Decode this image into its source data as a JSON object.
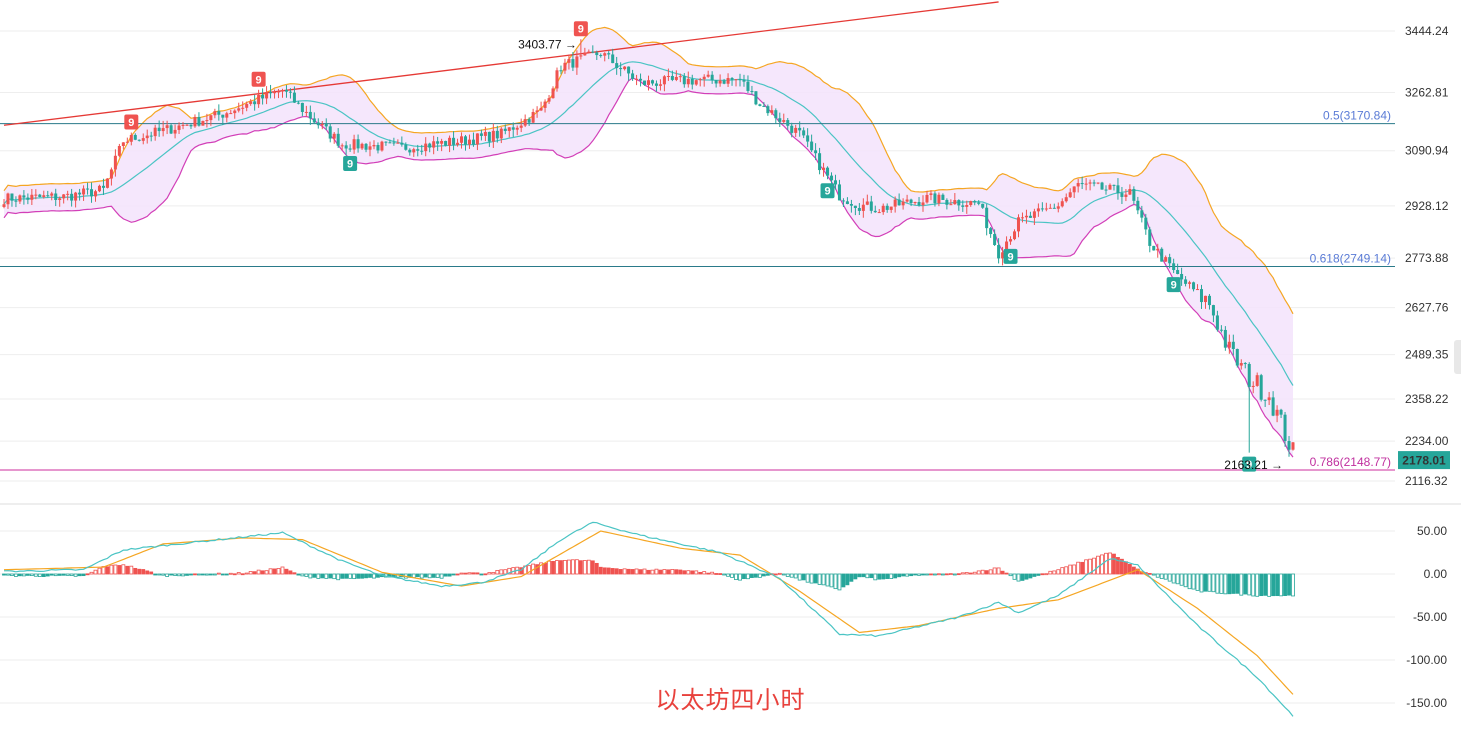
{
  "chart_data": [
    {
      "type": "candlestick",
      "title": "以太坊四小时",
      "ylim": [
        2060,
        3520
      ],
      "y_ticks": [
        "3444.24",
        "3262.81",
        "3090.94",
        "2928.12",
        "2773.88",
        "2627.76",
        "2489.35",
        "2358.22",
        "2234.00",
        "2116.32"
      ],
      "current_price": "2178.01",
      "colors": {
        "up": "#ef5350",
        "down": "#26a69a",
        "band_fill": "#f3e3fb",
        "upper_band": "#f5a623",
        "lower_band": "#d23fb8",
        "middle_band": "#4ac4c4",
        "trendline": "#e53935",
        "fib_blue": "#5a7bd6",
        "fib_magenta": "#c0309f",
        "fib_line_blue": "#2a7a8a",
        "fib_line_magenta": "#cc2e9e"
      },
      "fib_levels": [
        {
          "label": "0.5(3170.84)",
          "value": 3170.84
        },
        {
          "label": "0.618(2749.14)",
          "value": 2749.14
        },
        {
          "label": "0.786(2148.77)",
          "value": 2148.77
        }
      ],
      "annotations": [
        {
          "text": "3403.77 →",
          "value": 3403.77
        },
        {
          "text": "2163.21 →",
          "value": 2163.21
        }
      ],
      "td9_marks": [
        {
          "label": "9",
          "side": "high",
          "bar": 32
        },
        {
          "label": "9",
          "side": "high",
          "bar": 64
        },
        {
          "label": "9",
          "side": "high",
          "bar": 145
        },
        {
          "label": "9",
          "side": "low",
          "bar": 87
        },
        {
          "label": "9",
          "side": "low",
          "bar": 207
        },
        {
          "label": "9",
          "side": "low",
          "bar": 253
        },
        {
          "label": "9",
          "side": "low",
          "bar": 294
        },
        {
          "label": "9",
          "side": "low",
          "bar": 313
        }
      ],
      "trendline": {
        "from": {
          "bar": 0,
          "value": 3166
        },
        "to": {
          "bar": 250,
          "value": 3530
        }
      },
      "anchors": [
        {
          "bar": 0,
          "close": 2950
        },
        {
          "bar": 15,
          "close": 2955
        },
        {
          "bar": 25,
          "close": 2975
        },
        {
          "bar": 30,
          "close": 3120
        },
        {
          "bar": 40,
          "close": 3150
        },
        {
          "bar": 55,
          "close": 3200
        },
        {
          "bar": 70,
          "close": 3270
        },
        {
          "bar": 78,
          "close": 3180
        },
        {
          "bar": 85,
          "close": 3110
        },
        {
          "bar": 100,
          "close": 3100
        },
        {
          "bar": 115,
          "close": 3120
        },
        {
          "bar": 125,
          "close": 3140
        },
        {
          "bar": 135,
          "close": 3210
        },
        {
          "bar": 140,
          "close": 3340
        },
        {
          "bar": 150,
          "close": 3380
        },
        {
          "bar": 160,
          "close": 3290
        },
        {
          "bar": 175,
          "close": 3300
        },
        {
          "bar": 185,
          "close": 3300
        },
        {
          "bar": 190,
          "close": 3230
        },
        {
          "bar": 200,
          "close": 3140
        },
        {
          "bar": 210,
          "close": 2960
        },
        {
          "bar": 215,
          "close": 2930
        },
        {
          "bar": 220,
          "close": 2920
        },
        {
          "bar": 232,
          "close": 2950
        },
        {
          "bar": 245,
          "close": 2935
        },
        {
          "bar": 250,
          "close": 2790
        },
        {
          "bar": 255,
          "close": 2880
        },
        {
          "bar": 265,
          "close": 2930
        },
        {
          "bar": 270,
          "close": 2990
        },
        {
          "bar": 283,
          "close": 2965
        },
        {
          "bar": 288,
          "close": 2820
        },
        {
          "bar": 295,
          "close": 2720
        },
        {
          "bar": 303,
          "close": 2640
        },
        {
          "bar": 308,
          "close": 2500
        },
        {
          "bar": 313,
          "close": 2420
        },
        {
          "bar": 318,
          "close": 2370
        },
        {
          "bar": 324,
          "close": 2200
        }
      ],
      "bars": 325
    },
    {
      "type": "macd",
      "ylim": [
        -160,
        65
      ],
      "y_ticks": [
        "50.00",
        "0.00",
        "-50.00",
        "-100.00",
        "-150.00"
      ],
      "colors": {
        "hist_up": "#ef5350",
        "hist_down": "#26a69a",
        "dif": "#4ac4c4",
        "dea": "#f5a623"
      },
      "dif_anchors": [
        {
          "bar": 0,
          "value": 3
        },
        {
          "bar": 20,
          "value": 5
        },
        {
          "bar": 30,
          "value": 28
        },
        {
          "bar": 50,
          "value": 38
        },
        {
          "bar": 70,
          "value": 48
        },
        {
          "bar": 85,
          "value": 15
        },
        {
          "bar": 95,
          "value": -2
        },
        {
          "bar": 110,
          "value": -14
        },
        {
          "bar": 120,
          "value": -10
        },
        {
          "bar": 130,
          "value": 5
        },
        {
          "bar": 140,
          "value": 40
        },
        {
          "bar": 148,
          "value": 60
        },
        {
          "bar": 160,
          "value": 45
        },
        {
          "bar": 180,
          "value": 25
        },
        {
          "bar": 195,
          "value": -5
        },
        {
          "bar": 210,
          "value": -70
        },
        {
          "bar": 220,
          "value": -72
        },
        {
          "bar": 240,
          "value": -50
        },
        {
          "bar": 250,
          "value": -33
        },
        {
          "bar": 255,
          "value": -45
        },
        {
          "bar": 265,
          "value": -25
        },
        {
          "bar": 278,
          "value": 18
        },
        {
          "bar": 285,
          "value": 10
        },
        {
          "bar": 300,
          "value": -60
        },
        {
          "bar": 315,
          "value": -120
        },
        {
          "bar": 324,
          "value": -165
        }
      ],
      "dea_anchors": [
        {
          "bar": 0,
          "value": 5
        },
        {
          "bar": 25,
          "value": 8
        },
        {
          "bar": 40,
          "value": 35
        },
        {
          "bar": 60,
          "value": 42
        },
        {
          "bar": 75,
          "value": 40
        },
        {
          "bar": 95,
          "value": 2
        },
        {
          "bar": 115,
          "value": -14
        },
        {
          "bar": 130,
          "value": -3
        },
        {
          "bar": 150,
          "value": 50
        },
        {
          "bar": 170,
          "value": 30
        },
        {
          "bar": 185,
          "value": 22
        },
        {
          "bar": 200,
          "value": -20
        },
        {
          "bar": 215,
          "value": -68
        },
        {
          "bar": 230,
          "value": -60
        },
        {
          "bar": 250,
          "value": -40
        },
        {
          "bar": 265,
          "value": -30
        },
        {
          "bar": 285,
          "value": 5
        },
        {
          "bar": 300,
          "value": -40
        },
        {
          "bar": 315,
          "value": -95
        },
        {
          "bar": 324,
          "value": -140
        }
      ]
    }
  ]
}
